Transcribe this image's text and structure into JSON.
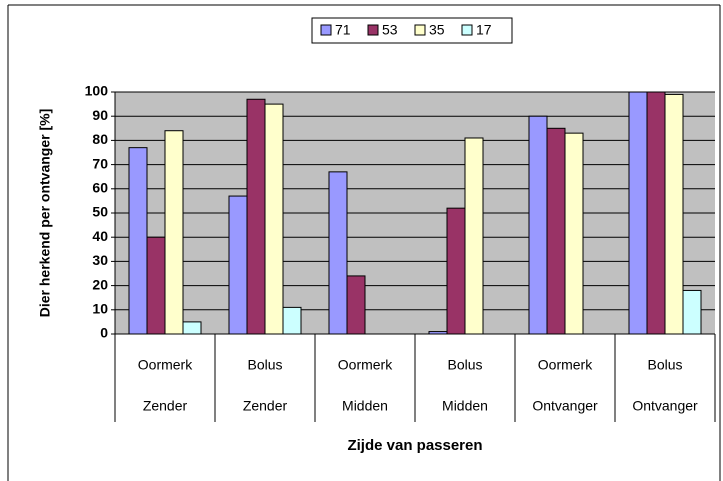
{
  "chart_data": {
    "type": "bar",
    "categories": [
      [
        "Oormerk",
        "Zender"
      ],
      [
        "Bolus",
        "Zender"
      ],
      [
        "Oormerk",
        "Midden"
      ],
      [
        "Bolus",
        "Midden"
      ],
      [
        "Oormerk",
        "Ontvanger"
      ],
      [
        "Bolus",
        "Ontvanger"
      ]
    ],
    "series": [
      {
        "name": "71",
        "color": "#9999ff",
        "values": [
          77,
          57,
          67,
          1,
          90,
          100
        ]
      },
      {
        "name": "53",
        "color": "#993366",
        "values": [
          40,
          97,
          24,
          52,
          85,
          100
        ]
      },
      {
        "name": "35",
        "color": "#ffffcc",
        "values": [
          84,
          95,
          0,
          81,
          83,
          99
        ]
      },
      {
        "name": "17",
        "color": "#ccffff",
        "values": [
          5,
          11,
          0,
          0,
          0,
          18
        ]
      }
    ],
    "xlabel": "Zijde van passeren",
    "ylabel": "Dier herkend per ontvanger [%]",
    "ylim": [
      0,
      100
    ],
    "yticks": [
      0,
      10,
      20,
      30,
      40,
      50,
      60,
      70,
      80,
      90,
      100
    ],
    "grid": true,
    "plot_background": "#c0c0c0",
    "legend": "top"
  }
}
